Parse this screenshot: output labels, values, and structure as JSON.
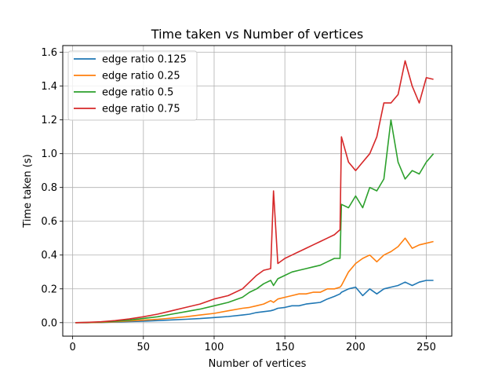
{
  "chart_data": {
    "type": "line",
    "title": "Time taken vs Number of vertices",
    "xlabel": "Number of vertices",
    "ylabel": "Time taken (s)",
    "xlim": [
      -7,
      268
    ],
    "ylim": [
      -0.08,
      1.64
    ],
    "xticks": [
      0,
      50,
      100,
      150,
      200,
      250
    ],
    "yticks": [
      0.0,
      0.2,
      0.4,
      0.6,
      0.8,
      1.0,
      1.2,
      1.4,
      1.6
    ],
    "xtick_labels": [
      "0",
      "50",
      "100",
      "150",
      "200",
      "250"
    ],
    "ytick_labels": [
      "0.0",
      "0.2",
      "0.4",
      "0.6",
      "0.8",
      "1.0",
      "1.2",
      "1.4",
      "1.6"
    ],
    "grid": true,
    "legend_position": "top-left",
    "x": [
      2,
      10,
      20,
      30,
      40,
      50,
      60,
      70,
      80,
      90,
      100,
      110,
      120,
      125,
      130,
      135,
      140,
      142,
      145,
      150,
      155,
      160,
      165,
      170,
      175,
      180,
      185,
      189,
      190,
      195,
      200,
      205,
      210,
      215,
      220,
      225,
      230,
      235,
      240,
      245,
      250,
      255
    ],
    "series": [
      {
        "name": "edge ratio 0.125",
        "color": "#1f77b4",
        "values": [
          0.0,
          0.0,
          0.001,
          0.003,
          0.006,
          0.009,
          0.012,
          0.016,
          0.02,
          0.024,
          0.03,
          0.036,
          0.045,
          0.05,
          0.06,
          0.065,
          0.07,
          0.075,
          0.085,
          0.09,
          0.1,
          0.1,
          0.11,
          0.115,
          0.12,
          0.14,
          0.155,
          0.17,
          0.18,
          0.2,
          0.21,
          0.16,
          0.2,
          0.17,
          0.2,
          0.21,
          0.22,
          0.24,
          0.22,
          0.24,
          0.25,
          0.25
        ]
      },
      {
        "name": "edge ratio 0.25",
        "color": "#ff7f0e",
        "values": [
          0.0,
          0.0,
          0.002,
          0.005,
          0.01,
          0.015,
          0.02,
          0.027,
          0.035,
          0.045,
          0.055,
          0.07,
          0.085,
          0.09,
          0.1,
          0.11,
          0.13,
          0.12,
          0.14,
          0.15,
          0.16,
          0.17,
          0.17,
          0.18,
          0.18,
          0.2,
          0.2,
          0.21,
          0.22,
          0.3,
          0.35,
          0.38,
          0.4,
          0.36,
          0.4,
          0.42,
          0.45,
          0.5,
          0.44,
          0.46,
          0.47,
          0.48
        ]
      },
      {
        "name": "edge ratio 0.5",
        "color": "#2ca02c",
        "values": [
          0.0,
          0.001,
          0.003,
          0.008,
          0.015,
          0.025,
          0.035,
          0.05,
          0.065,
          0.08,
          0.1,
          0.12,
          0.15,
          0.18,
          0.2,
          0.23,
          0.25,
          0.22,
          0.26,
          0.28,
          0.3,
          0.31,
          0.32,
          0.33,
          0.34,
          0.36,
          0.38,
          0.38,
          0.7,
          0.68,
          0.75,
          0.68,
          0.8,
          0.78,
          0.85,
          1.2,
          0.95,
          0.85,
          0.9,
          0.88,
          0.95,
          1.0
        ]
      },
      {
        "name": "edge ratio 0.75",
        "color": "#d62728",
        "values": [
          0.0,
          0.002,
          0.005,
          0.012,
          0.022,
          0.035,
          0.05,
          0.07,
          0.09,
          0.11,
          0.14,
          0.16,
          0.2,
          0.24,
          0.28,
          0.31,
          0.32,
          0.78,
          0.35,
          0.38,
          0.4,
          0.42,
          0.44,
          0.46,
          0.48,
          0.5,
          0.52,
          0.55,
          1.1,
          0.95,
          0.9,
          0.95,
          1.0,
          1.1,
          1.3,
          1.3,
          1.35,
          1.55,
          1.4,
          1.3,
          1.45,
          1.44
        ]
      }
    ]
  }
}
